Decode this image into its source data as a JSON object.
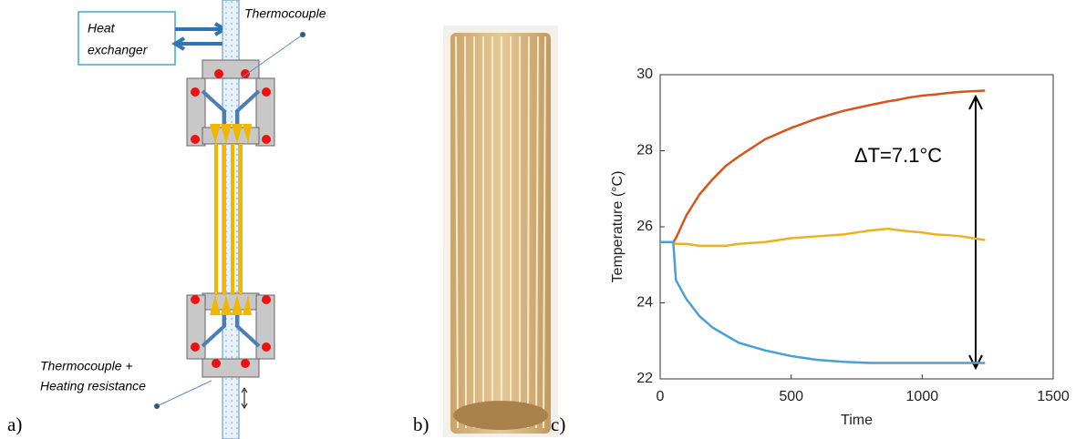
{
  "panels": {
    "a": {
      "label": "a)",
      "heat_exchanger": [
        "Heat",
        "exchanger"
      ],
      "thermocouple_top": "Thermocouple",
      "thermocouple_bottom": [
        "Thermocouple +",
        "Heating resistance"
      ]
    },
    "b": {
      "label": "b)"
    },
    "c": {
      "label": "c)"
    }
  },
  "chart_data": {
    "type": "line",
    "x_label": "Time",
    "y_label": "Temperature (°C)",
    "annotation": "ΔT=7.1°C",
    "x": [
      0,
      50,
      60,
      100,
      150,
      200,
      250,
      300,
      400,
      500,
      600,
      700,
      800,
      870,
      900,
      950,
      1000,
      1050,
      1100,
      1150,
      1240
    ],
    "series": [
      {
        "color": "#d95319",
        "values": [
          25.6,
          25.6,
          25.7,
          26.3,
          26.85,
          27.25,
          27.6,
          27.85,
          28.3,
          28.6,
          28.85,
          29.05,
          29.2,
          29.3,
          29.33,
          29.4,
          29.45,
          29.48,
          29.52,
          29.55,
          29.58
        ]
      },
      {
        "color": "#edb120",
        "values": [
          25.6,
          25.6,
          25.55,
          25.55,
          25.5,
          25.5,
          25.5,
          25.55,
          25.6,
          25.7,
          25.75,
          25.8,
          25.9,
          25.95,
          25.92,
          25.88,
          25.85,
          25.8,
          25.78,
          25.75,
          25.65
        ]
      },
      {
        "color": "#4a9fd6",
        "values": [
          25.6,
          25.6,
          24.6,
          24.1,
          23.65,
          23.35,
          23.15,
          22.95,
          22.75,
          22.6,
          22.5,
          22.45,
          22.42,
          22.42,
          22.42,
          22.42,
          22.42,
          22.42,
          22.42,
          22.42,
          22.42
        ]
      }
    ],
    "xlim": [
      0,
      1500
    ],
    "xticks": [
      0,
      500,
      1000,
      1500
    ],
    "ylim": [
      22,
      30
    ],
    "yticks": [
      22,
      24,
      26,
      28,
      30
    ]
  }
}
